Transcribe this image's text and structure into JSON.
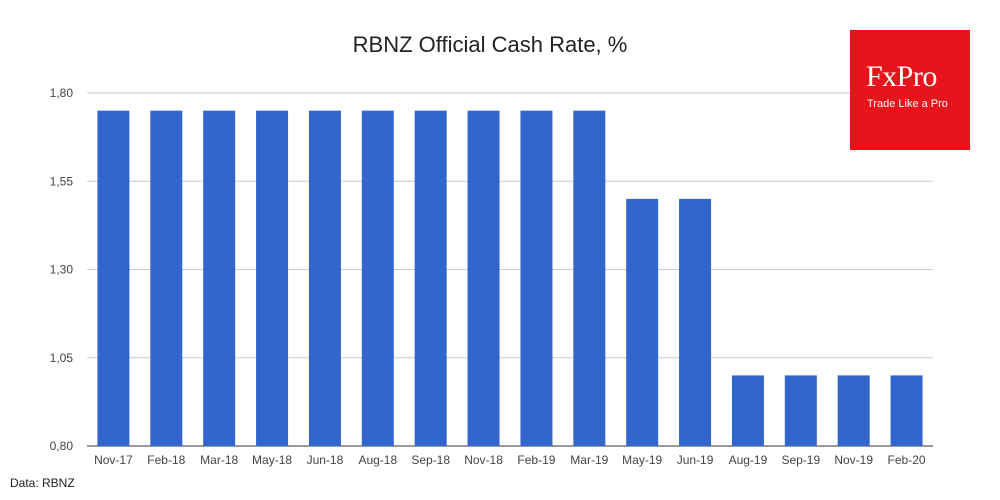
{
  "chart_data": {
    "type": "bar",
    "title": "RBNZ Official Cash Rate, %",
    "categories": [
      "Nov-17",
      "Feb-18",
      "Mar-18",
      "May-18",
      "Jun-18",
      "Aug-18",
      "Sep-18",
      "Nov-18",
      "Feb-19",
      "Mar-19",
      "May-19",
      "Jun-19",
      "Aug-19",
      "Sep-19",
      "Nov-19",
      "Feb-20"
    ],
    "values": [
      1.75,
      1.75,
      1.75,
      1.75,
      1.75,
      1.75,
      1.75,
      1.75,
      1.75,
      1.75,
      1.5,
      1.5,
      1.0,
      1.0,
      1.0,
      1.0
    ],
    "ylim": [
      0.8,
      1.8
    ],
    "yticks": [
      "0,80",
      "1,05",
      "1,30",
      "1,55",
      "1,80"
    ],
    "ytick_values": [
      0.8,
      1.05,
      1.3,
      1.55,
      1.8
    ],
    "grid": true,
    "bar_color": "#3366cc",
    "grid_color": "#cccccc"
  },
  "source_note": "Data: RBNZ",
  "logo": {
    "brand": "FxPro",
    "tagline": "Trade Like a Pro",
    "color": "#e8141c"
  }
}
